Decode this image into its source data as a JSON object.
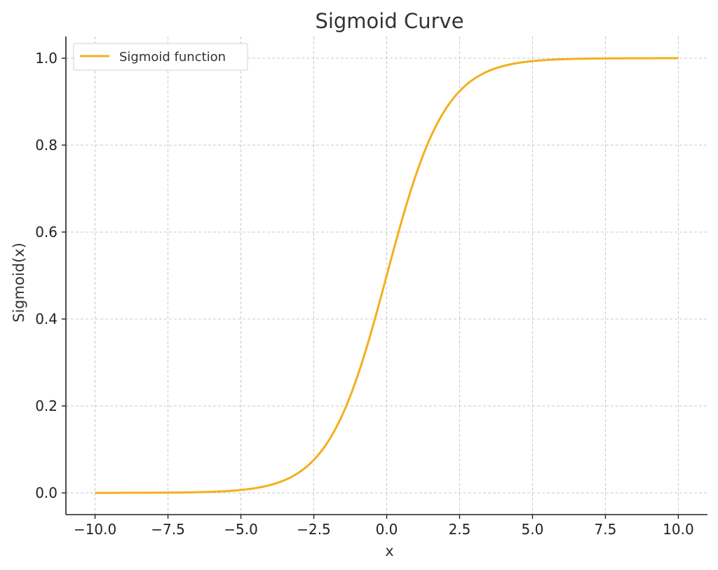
{
  "chart_data": {
    "type": "line",
    "title": "Sigmoid Curve",
    "xlabel": "x",
    "ylabel": "Sigmoid(x)",
    "xlim": [
      -11,
      11
    ],
    "ylim": [
      -0.05,
      1.05
    ],
    "x_ticks": [
      -10.0,
      -7.5,
      -5.0,
      -2.5,
      0.0,
      2.5,
      5.0,
      7.5,
      10.0
    ],
    "x_tick_labels": [
      "−10.0",
      "−7.5",
      "−5.0",
      "−2.5",
      "0.0",
      "2.5",
      "5.0",
      "7.5",
      "10.0"
    ],
    "y_ticks": [
      0.0,
      0.2,
      0.4,
      0.6,
      0.8,
      1.0
    ],
    "y_tick_labels": [
      "0.0",
      "0.2",
      "0.4",
      "0.6",
      "0.8",
      "1.0"
    ],
    "grid": true,
    "legend_position": "top-left",
    "series": [
      {
        "name": "Sigmoid function",
        "color": "#f2b01e",
        "x": [
          -10,
          -7.5,
          -5,
          -4,
          -3,
          -2.5,
          -2,
          -1.5,
          -1,
          -0.5,
          0,
          0.5,
          1,
          1.5,
          2,
          2.5,
          3,
          4,
          5,
          7.5,
          10
        ],
        "y": [
          4.54e-05,
          0.000553,
          0.00669,
          0.018,
          0.0474,
          0.0759,
          0.1192,
          0.1824,
          0.2689,
          0.3775,
          0.5,
          0.6225,
          0.7311,
          0.8176,
          0.8808,
          0.9241,
          0.9526,
          0.982,
          0.9933,
          0.9994,
          0.99995
        ]
      }
    ]
  }
}
